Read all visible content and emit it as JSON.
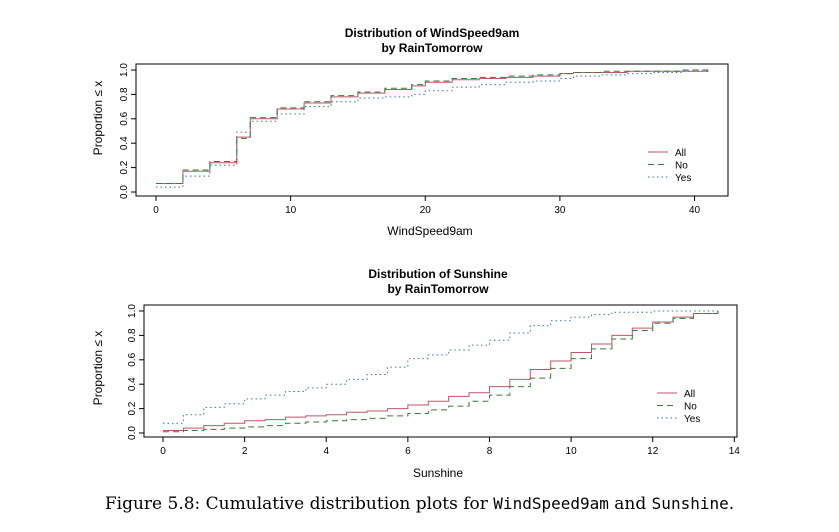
{
  "figure": {
    "caption_prefix": "Figure 5.8: Cumulative distribution plots for ",
    "caption_var1": "WindSpeed9am",
    "caption_mid": " and ",
    "caption_var2": "Sunshine",
    "caption_suffix": "."
  },
  "chart_data": [
    {
      "type": "line",
      "title": "Distribution of WindSpeed9am",
      "subtitle": "by RainTomorrow",
      "xlabel": "WindSpeed9am",
      "ylabel": "Proportion ≤ x",
      "xlim": [
        0,
        41
      ],
      "ylim": [
        0,
        1
      ],
      "xticks": [
        0,
        10,
        20,
        30,
        40
      ],
      "yticks": [
        0.0,
        0.2,
        0.4,
        0.6,
        0.8,
        1.0
      ],
      "ytick_labels": [
        "0.0",
        "0.2",
        "0.4",
        "0.6",
        "0.8",
        "1.0"
      ],
      "legend_position": "bottom-right",
      "series": [
        {
          "name": "All",
          "color": "#c0566a",
          "dash": "none",
          "x": [
            0,
            2,
            4,
            6,
            7,
            9,
            11,
            13,
            15,
            17,
            19,
            20,
            22,
            24,
            26,
            28,
            30,
            31,
            33,
            35,
            37,
            39,
            41
          ],
          "y": [
            0.07,
            0.17,
            0.24,
            0.45,
            0.6,
            0.68,
            0.73,
            0.78,
            0.81,
            0.84,
            0.87,
            0.9,
            0.92,
            0.93,
            0.94,
            0.95,
            0.97,
            0.98,
            0.98,
            0.99,
            0.99,
            0.99,
            1.0
          ]
        },
        {
          "name": "No",
          "color": "#3a7a3a",
          "dash": "6,4",
          "x": [
            0,
            2,
            4,
            6,
            7,
            9,
            11,
            13,
            15,
            17,
            19,
            20,
            22,
            24,
            26,
            28,
            30,
            31,
            33,
            35,
            37,
            39,
            41
          ],
          "y": [
            0.07,
            0.18,
            0.25,
            0.44,
            0.61,
            0.69,
            0.74,
            0.79,
            0.82,
            0.85,
            0.88,
            0.91,
            0.93,
            0.94,
            0.95,
            0.96,
            0.97,
            0.98,
            0.99,
            0.99,
            0.99,
            1.0,
            1.0
          ]
        },
        {
          "name": "Yes",
          "color": "#3b6fb6",
          "dash": "1.5,3",
          "x": [
            0,
            2,
            4,
            6,
            7,
            9,
            11,
            13,
            15,
            17,
            19,
            20,
            22,
            24,
            26,
            28,
            30,
            31,
            33,
            35,
            37,
            39,
            41
          ],
          "y": [
            0.04,
            0.13,
            0.22,
            0.49,
            0.58,
            0.64,
            0.7,
            0.74,
            0.77,
            0.78,
            0.8,
            0.83,
            0.86,
            0.88,
            0.9,
            0.91,
            0.93,
            0.95,
            0.96,
            0.97,
            0.98,
            0.99,
            1.0
          ]
        }
      ]
    },
    {
      "type": "line",
      "title": "Distribution of Sunshine",
      "subtitle": "by RainTomorrow",
      "xlabel": "Sunshine",
      "ylabel": "Proportion ≤ x",
      "xlim": [
        0,
        13.6
      ],
      "ylim": [
        0,
        1
      ],
      "xticks": [
        0,
        2,
        4,
        6,
        8,
        10,
        12,
        14
      ],
      "yticks": [
        0.0,
        0.2,
        0.4,
        0.6,
        0.8,
        1.0
      ],
      "ytick_labels": [
        "0.0",
        "0.2",
        "0.4",
        "0.6",
        "0.8",
        "1.0"
      ],
      "legend_position": "bottom-right",
      "series": [
        {
          "name": "All",
          "color": "#c0566a",
          "dash": "none",
          "x": [
            0,
            0.5,
            1,
            1.5,
            2,
            2.5,
            3,
            3.5,
            4,
            4.5,
            5,
            5.5,
            6,
            6.5,
            7,
            7.5,
            8,
            8.5,
            9,
            9.5,
            10,
            10.5,
            11,
            11.5,
            12,
            12.5,
            13,
            13.6
          ],
          "y": [
            0.02,
            0.04,
            0.06,
            0.08,
            0.1,
            0.11,
            0.13,
            0.14,
            0.15,
            0.17,
            0.18,
            0.2,
            0.23,
            0.26,
            0.3,
            0.33,
            0.38,
            0.44,
            0.52,
            0.59,
            0.66,
            0.73,
            0.8,
            0.86,
            0.91,
            0.95,
            0.98,
            1.0
          ]
        },
        {
          "name": "No",
          "color": "#3a7a3a",
          "dash": "6,4",
          "x": [
            0,
            0.5,
            1,
            1.5,
            2,
            2.5,
            3,
            3.5,
            4,
            4.5,
            5,
            5.5,
            6,
            6.5,
            7,
            7.5,
            8,
            8.5,
            9,
            9.5,
            10,
            10.5,
            11,
            11.5,
            12,
            12.5,
            13,
            13.6
          ],
          "y": [
            0.01,
            0.02,
            0.03,
            0.04,
            0.05,
            0.06,
            0.08,
            0.09,
            0.1,
            0.11,
            0.12,
            0.14,
            0.16,
            0.19,
            0.22,
            0.26,
            0.31,
            0.38,
            0.45,
            0.53,
            0.61,
            0.69,
            0.77,
            0.84,
            0.9,
            0.94,
            0.98,
            1.0
          ]
        },
        {
          "name": "Yes",
          "color": "#3b6fb6",
          "dash": "1.5,3",
          "x": [
            0,
            0.5,
            1,
            1.5,
            2,
            2.5,
            3,
            3.5,
            4,
            4.5,
            5,
            5.5,
            6,
            6.5,
            7,
            7.5,
            8,
            8.5,
            9,
            9.5,
            10,
            10.5,
            11,
            11.5,
            12,
            12.5,
            13,
            13.6
          ],
          "y": [
            0.08,
            0.15,
            0.21,
            0.24,
            0.28,
            0.31,
            0.34,
            0.37,
            0.4,
            0.44,
            0.48,
            0.54,
            0.61,
            0.64,
            0.68,
            0.72,
            0.76,
            0.82,
            0.88,
            0.92,
            0.95,
            0.97,
            0.99,
            0.99,
            1.0,
            1.0,
            1.0,
            1.0
          ]
        }
      ]
    }
  ]
}
